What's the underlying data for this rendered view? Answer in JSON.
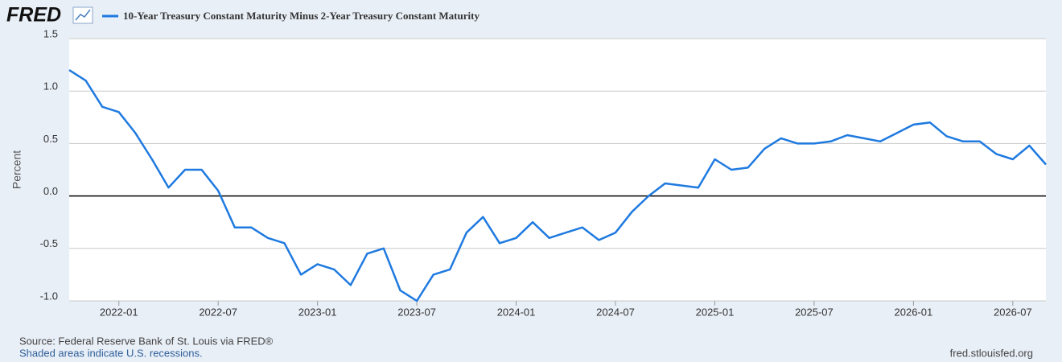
{
  "logo": "FRED",
  "source": "Source: Federal Reserve Bank of St. Louis via FRED®",
  "note": "Shaded areas indicate U.S. recessions.",
  "url": "fred.stlouisfed.org",
  "chart_data": {
    "type": "line",
    "y_label": "Percent",
    "x": [
      "2021-10",
      "2021-11",
      "2021-12",
      "2022-01",
      "2022-02",
      "2022-03",
      "2022-04",
      "2022-05",
      "2022-06",
      "2022-07",
      "2022-08",
      "2022-09",
      "2022-10",
      "2022-11",
      "2022-12",
      "2023-01",
      "2023-02",
      "2023-03",
      "2023-04",
      "2023-05",
      "2023-06",
      "2023-07",
      "2023-08",
      "2023-09",
      "2023-10",
      "2023-11",
      "2023-12",
      "2024-01",
      "2024-02",
      "2024-03",
      "2024-04",
      "2024-05",
      "2024-06",
      "2024-07",
      "2024-08",
      "2024-09",
      "2024-10",
      "2024-11",
      "2024-12",
      "2025-01",
      "2025-02",
      "2025-03",
      "2025-04",
      "2025-05",
      "2025-06",
      "2025-07",
      "2025-08",
      "2025-09",
      "2025-10",
      "2025-11",
      "2025-12",
      "2026-01",
      "2026-02",
      "2026-03",
      "2026-04",
      "2026-05",
      "2026-06",
      "2026-07",
      "2026-08",
      "2026-09"
    ],
    "series": [
      {
        "name": "10-Year Treasury Constant Maturity Minus 2-Year Treasury Constant Maturity",
        "color": "#1f7ae0",
        "values": [
          1.2,
          1.1,
          0.85,
          0.8,
          0.6,
          0.35,
          0.08,
          0.25,
          0.25,
          0.05,
          -0.3,
          -0.3,
          -0.4,
          -0.45,
          -0.75,
          -0.65,
          -0.7,
          -0.85,
          -0.55,
          -0.5,
          -0.9,
          -1.0,
          -0.75,
          -0.7,
          -0.35,
          -0.2,
          -0.45,
          -0.4,
          -0.25,
          -0.4,
          -0.35,
          -0.3,
          -0.42,
          -0.35,
          -0.15,
          0.0,
          0.12,
          0.1,
          0.08,
          0.35,
          0.25,
          0.27,
          0.45,
          0.55,
          0.5,
          0.5,
          0.52,
          0.58,
          0.55,
          0.52,
          0.6,
          0.68,
          0.7,
          0.57,
          0.52,
          0.52,
          0.4,
          0.35,
          0.48,
          0.3
        ]
      }
    ],
    "xlim": [
      "2021-10",
      "2026-09"
    ],
    "xticks": [
      "2022-01",
      "2022-07",
      "2023-01",
      "2023-07",
      "2024-01",
      "2024-07",
      "2025-01",
      "2025-07",
      "2026-01",
      "2026-07"
    ],
    "ylim": [
      -1.0,
      1.5
    ],
    "yticks": [
      {
        "value": -1.0,
        "label": "-1.0"
      },
      -0.5,
      {
        "value": 0,
        "label": "0.0"
      },
      0.5,
      {
        "value": 1.0,
        "label": "1.0"
      },
      1.5
    ],
    "grid": true
  }
}
